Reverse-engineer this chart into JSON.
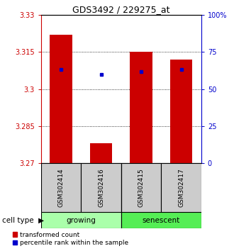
{
  "title": "GDS3492 / 229275_at",
  "samples": [
    "GSM302414",
    "GSM302416",
    "GSM302415",
    "GSM302417"
  ],
  "red_values": [
    3.322,
    3.278,
    3.315,
    3.312
  ],
  "blue_values": [
    3.308,
    3.306,
    3.307,
    3.308
  ],
  "y_min": 3.27,
  "y_max": 3.33,
  "y_ticks": [
    3.27,
    3.285,
    3.3,
    3.315,
    3.33
  ],
  "y_right_ticks": [
    0,
    25,
    50,
    75,
    100
  ],
  "y_right_labels": [
    "0",
    "25",
    "50",
    "75",
    "100%"
  ],
  "bar_color": "#cc0000",
  "dot_color": "#0000cc",
  "bar_width": 0.55,
  "group_colors": [
    "#aaffaa",
    "#55ee55"
  ],
  "group_labels": [
    "growing",
    "senescent"
  ],
  "group_sizes": [
    2,
    2
  ],
  "cell_type_label": "cell type",
  "legend_red": "transformed count",
  "legend_blue": "percentile rank within the sample",
  "sample_box_color": "#cccccc"
}
